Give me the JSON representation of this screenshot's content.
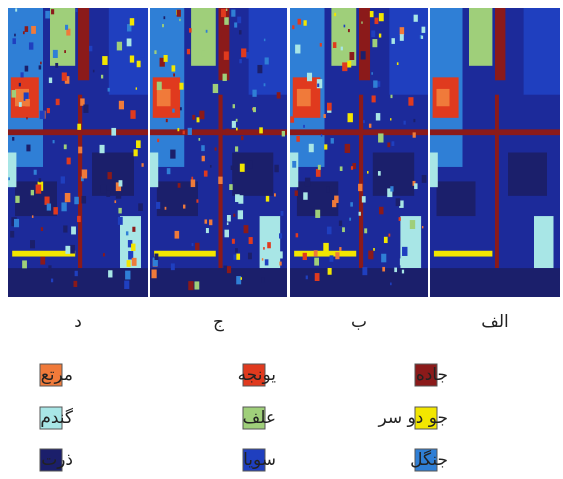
{
  "panels": [
    {
      "label": "د"
    },
    {
      "label": "ج"
    },
    {
      "label": "ب"
    },
    {
      "label": "الف"
    }
  ],
  "legend": [
    {
      "label": "جاده",
      "color": "#8b1a1a"
    },
    {
      "label": "جو دو سر",
      "color": "#f2e600"
    },
    {
      "label": "جنگل",
      "color": "#2f7fd6"
    },
    {
      "label": "یونجه",
      "color": "#e03a1e"
    },
    {
      "label": "علف",
      "color": "#9fcf7a"
    },
    {
      "label": "سویا",
      "color": "#1f3fbf"
    },
    {
      "label": "مرتع",
      "color": "#f07a3a"
    },
    {
      "label": "گندم",
      "color": "#a8e6e6"
    },
    {
      "label": "ذرت",
      "color": "#1b1f6b"
    }
  ]
}
